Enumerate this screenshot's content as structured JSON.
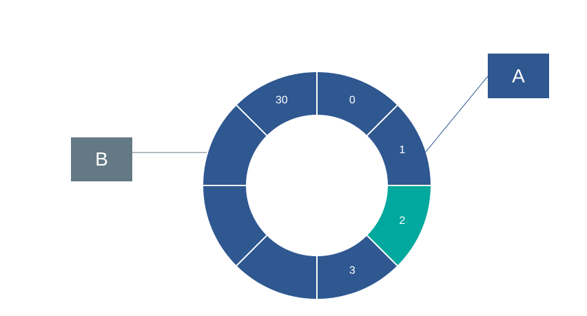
{
  "ring": {
    "segment_count": 8,
    "base_color": "#2f5891",
    "highlight_color": "#00a89d",
    "divider_color": "#ffffff",
    "segments": [
      {
        "label": "0",
        "highlighted": false
      },
      {
        "label": "1",
        "highlighted": false
      },
      {
        "label": "2",
        "highlighted": true
      },
      {
        "label": "3",
        "highlighted": false
      },
      {
        "label": "",
        "highlighted": false
      },
      {
        "label": "",
        "highlighted": false
      },
      {
        "label": "",
        "highlighted": false
      },
      {
        "label": "30",
        "highlighted": false
      }
    ]
  },
  "callouts": {
    "a": {
      "label": "A",
      "color": "#2f5891",
      "line_color": "#2f5891"
    },
    "b": {
      "label": "B",
      "color": "#637a84",
      "line_color": "#637a84"
    }
  }
}
